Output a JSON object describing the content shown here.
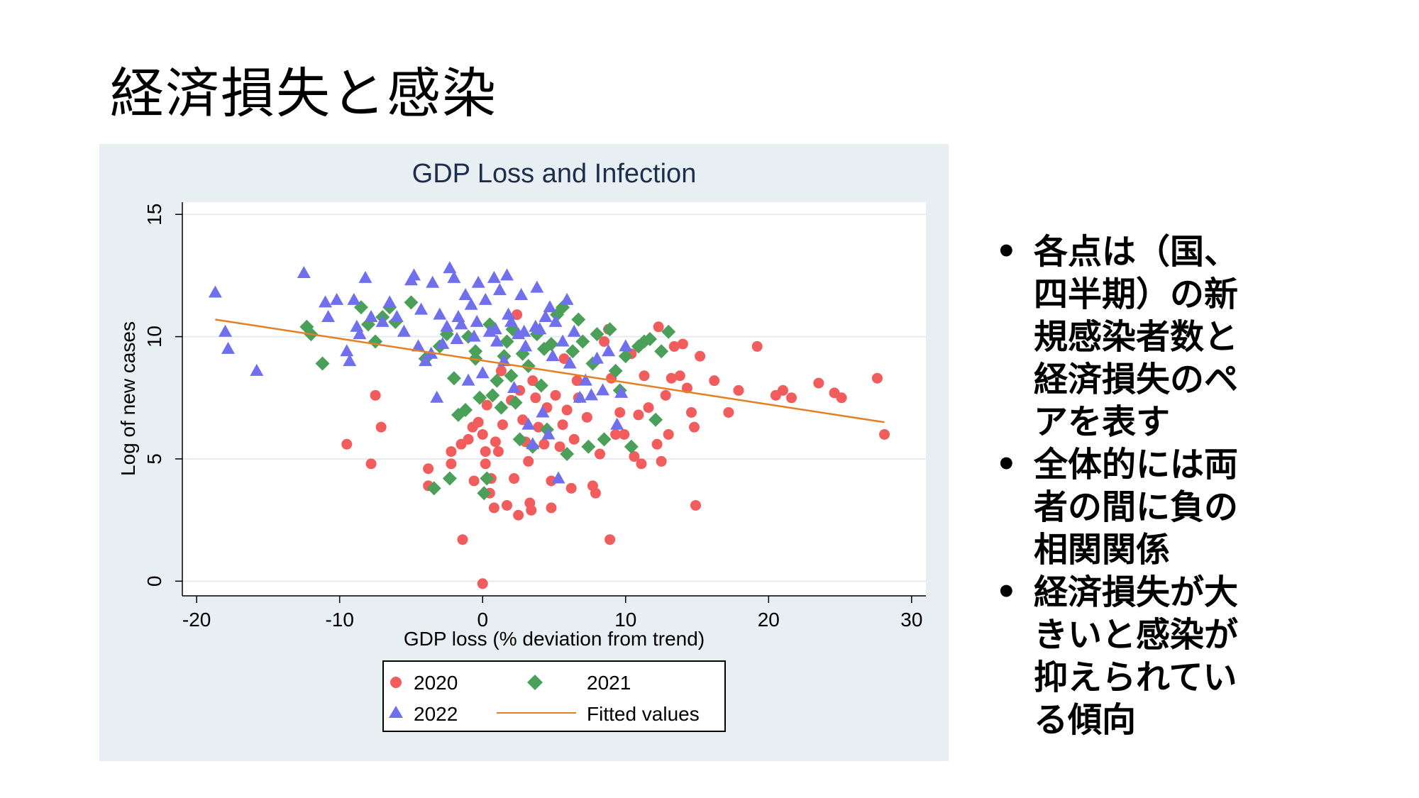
{
  "slide": {
    "title": "経済損失と感染",
    "bullets": [
      "各点は（国、四半期）の新規感染者数と経済損失のペアを表す",
      "全体的には両者の間に負の相関関係",
      "経済損失が大きいと感染が抑えられている傾向"
    ]
  },
  "chart_data": {
    "type": "scatter",
    "title": "GDP Loss and Infection",
    "xlabel": "GDP loss (% deviation from trend)",
    "ylabel": "Log of new cases",
    "xlim": [
      -21,
      31
    ],
    "ylim": [
      -0.6,
      15.5
    ],
    "xticks": [
      "-20",
      "-10",
      "0",
      "10",
      "20",
      "30"
    ],
    "xtick_values": [
      -20,
      -10,
      0,
      10,
      20,
      30
    ],
    "yticks": [
      "0",
      "5",
      "10",
      "15"
    ],
    "ytick_values": [
      0,
      5,
      10,
      15
    ],
    "grid": true,
    "legend": {
      "placement": "bottom",
      "entries": [
        "2020",
        "2021",
        "2022",
        "Fitted values"
      ]
    },
    "series": [
      {
        "name": "2020",
        "marker": "circle",
        "color": "#f25c5c",
        "points": [
          [
            -9.5,
            5.6
          ],
          [
            -7.8,
            4.8
          ],
          [
            -7.5,
            7.6
          ],
          [
            -7.1,
            6.3
          ],
          [
            -3.8,
            3.9
          ],
          [
            -3.8,
            4.6
          ],
          [
            -2.2,
            5.3
          ],
          [
            -2.2,
            4.8
          ],
          [
            -1.5,
            5.6
          ],
          [
            -1.0,
            5.8
          ],
          [
            -0.7,
            6.3
          ],
          [
            -1.4,
            1.7
          ],
          [
            -0.6,
            4.1
          ],
          [
            -0.3,
            6.5
          ],
          [
            0.0,
            6.0
          ],
          [
            0.0,
            -0.1
          ],
          [
            0.2,
            4.8
          ],
          [
            0.2,
            5.3
          ],
          [
            0.3,
            7.2
          ],
          [
            0.5,
            3.6
          ],
          [
            0.6,
            4.2
          ],
          [
            0.8,
            3.0
          ],
          [
            0.9,
            5.7
          ],
          [
            1.1,
            5.3
          ],
          [
            1.4,
            6.4
          ],
          [
            1.7,
            3.1
          ],
          [
            2.0,
            7.4
          ],
          [
            2.2,
            4.2
          ],
          [
            2.5,
            2.7
          ],
          [
            2.6,
            7.8
          ],
          [
            2.8,
            6.6
          ],
          [
            3.0,
            5.7
          ],
          [
            3.2,
            4.9
          ],
          [
            3.3,
            3.2
          ],
          [
            3.4,
            2.9
          ],
          [
            3.5,
            8.2
          ],
          [
            3.7,
            7.5
          ],
          [
            3.9,
            6.3
          ],
          [
            4.3,
            5.6
          ],
          [
            4.5,
            7.1
          ],
          [
            4.8,
            3.0
          ],
          [
            4.8,
            4.1
          ],
          [
            5.1,
            7.6
          ],
          [
            5.4,
            5.5
          ],
          [
            5.6,
            6.4
          ],
          [
            5.9,
            7.0
          ],
          [
            6.2,
            3.8
          ],
          [
            6.4,
            5.8
          ],
          [
            6.6,
            8.2
          ],
          [
            6.7,
            7.5
          ],
          [
            7.3,
            6.7
          ],
          [
            7.7,
            3.9
          ],
          [
            7.9,
            3.6
          ],
          [
            8.2,
            5.2
          ],
          [
            8.5,
            9.8
          ],
          [
            8.9,
            1.7
          ],
          [
            9.0,
            8.3
          ],
          [
            9.3,
            6.0
          ],
          [
            9.6,
            6.9
          ],
          [
            9.9,
            6.0
          ],
          [
            10.4,
            9.3
          ],
          [
            10.6,
            5.1
          ],
          [
            10.9,
            6.8
          ],
          [
            11.1,
            4.8
          ],
          [
            11.3,
            8.4
          ],
          [
            11.6,
            7.1
          ],
          [
            12.2,
            5.6
          ],
          [
            12.5,
            4.9
          ],
          [
            12.8,
            7.6
          ],
          [
            13.0,
            6.0
          ],
          [
            13.2,
            8.3
          ],
          [
            13.4,
            9.6
          ],
          [
            13.8,
            8.4
          ],
          [
            14.0,
            9.7
          ],
          [
            14.3,
            7.9
          ],
          [
            14.6,
            6.9
          ],
          [
            14.8,
            6.3
          ],
          [
            14.9,
            3.1
          ],
          [
            15.2,
            9.2
          ],
          [
            16.2,
            8.2
          ],
          [
            17.2,
            6.9
          ],
          [
            17.9,
            7.8
          ],
          [
            19.2,
            9.6
          ],
          [
            20.5,
            7.6
          ],
          [
            21.0,
            7.8
          ],
          [
            21.6,
            7.5
          ],
          [
            23.5,
            8.1
          ],
          [
            24.6,
            7.7
          ],
          [
            25.1,
            7.5
          ],
          [
            27.6,
            8.3
          ],
          [
            28.1,
            6.0
          ],
          [
            12.3,
            10.4
          ],
          [
            2.4,
            10.9
          ],
          [
            5.7,
            9.1
          ],
          [
            8.8,
            10.3
          ],
          [
            1.3,
            8.6
          ]
        ]
      },
      {
        "name": "2021",
        "marker": "diamond",
        "color": "#4aa059",
        "points": [
          [
            -12.3,
            10.4
          ],
          [
            -12.0,
            10.1
          ],
          [
            -11.2,
            8.9
          ],
          [
            -8.5,
            11.2
          ],
          [
            -8.0,
            10.5
          ],
          [
            -7.5,
            9.8
          ],
          [
            -7.0,
            10.8
          ],
          [
            -6.5,
            11.2
          ],
          [
            -6.1,
            10.6
          ],
          [
            -5.0,
            11.4
          ],
          [
            -4.0,
            9.1
          ],
          [
            -3.0,
            9.6
          ],
          [
            -2.5,
            10.1
          ],
          [
            -2.0,
            8.3
          ],
          [
            -1.7,
            6.8
          ],
          [
            -1.2,
            7.0
          ],
          [
            -0.5,
            9.4
          ],
          [
            -0.2,
            7.5
          ],
          [
            0.1,
            3.6
          ],
          [
            0.3,
            4.2
          ],
          [
            0.7,
            7.6
          ],
          [
            1.0,
            8.2
          ],
          [
            1.3,
            7.1
          ],
          [
            1.7,
            9.8
          ],
          [
            2.0,
            8.4
          ],
          [
            2.3,
            7.3
          ],
          [
            2.6,
            5.8
          ],
          [
            2.8,
            9.3
          ],
          [
            3.2,
            8.8
          ],
          [
            3.5,
            5.5
          ],
          [
            3.8,
            10.1
          ],
          [
            4.1,
            8.0
          ],
          [
            4.5,
            6.2
          ],
          [
            4.8,
            9.7
          ],
          [
            5.2,
            10.9
          ],
          [
            5.6,
            11.2
          ],
          [
            5.9,
            5.2
          ],
          [
            6.3,
            9.4
          ],
          [
            6.7,
            10.7
          ],
          [
            7.0,
            9.8
          ],
          [
            7.4,
            5.5
          ],
          [
            7.7,
            8.9
          ],
          [
            8.0,
            10.1
          ],
          [
            8.5,
            5.8
          ],
          [
            8.9,
            10.3
          ],
          [
            9.3,
            8.6
          ],
          [
            9.6,
            7.8
          ],
          [
            10.0,
            9.2
          ],
          [
            10.4,
            5.5
          ],
          [
            10.9,
            9.6
          ],
          [
            11.3,
            9.8
          ],
          [
            11.7,
            9.9
          ],
          [
            12.1,
            6.6
          ],
          [
            12.5,
            9.4
          ],
          [
            13.0,
            10.2
          ],
          [
            -3.4,
            3.8
          ],
          [
            -2.3,
            4.2
          ],
          [
            -0.5,
            9.1
          ],
          [
            1.5,
            9.2
          ],
          [
            0.5,
            10.5
          ],
          [
            -1.0,
            10.0
          ],
          [
            2.1,
            10.3
          ],
          [
            4.3,
            9.5
          ]
        ]
      },
      {
        "name": "2022",
        "marker": "triangle",
        "color": "#7070ee",
        "points": [
          [
            -18.7,
            11.8
          ],
          [
            -18.0,
            10.2
          ],
          [
            -17.8,
            9.5
          ],
          [
            -15.8,
            8.6
          ],
          [
            -12.5,
            12.6
          ],
          [
            -11.0,
            11.4
          ],
          [
            -10.8,
            10.8
          ],
          [
            -10.2,
            11.5
          ],
          [
            -9.5,
            9.4
          ],
          [
            -9.3,
            9.0
          ],
          [
            -9.0,
            11.5
          ],
          [
            -8.8,
            10.4
          ],
          [
            -8.6,
            10.1
          ],
          [
            -8.2,
            12.4
          ],
          [
            -7.8,
            10.8
          ],
          [
            -7.0,
            10.6
          ],
          [
            -6.5,
            11.4
          ],
          [
            -6.0,
            10.8
          ],
          [
            -5.5,
            10.2
          ],
          [
            -5.0,
            12.3
          ],
          [
            -4.8,
            12.5
          ],
          [
            -4.5,
            9.6
          ],
          [
            -4.3,
            11.1
          ],
          [
            -4.0,
            9.0
          ],
          [
            -3.6,
            9.3
          ],
          [
            -3.5,
            12.2
          ],
          [
            -3.2,
            7.5
          ],
          [
            -3.0,
            10.9
          ],
          [
            -2.8,
            9.7
          ],
          [
            -2.3,
            12.8
          ],
          [
            -2.0,
            12.4
          ],
          [
            -1.8,
            9.9
          ],
          [
            -1.5,
            10.5
          ],
          [
            -1.2,
            11.7
          ],
          [
            -1.0,
            8.2
          ],
          [
            -0.8,
            11.3
          ],
          [
            -0.6,
            10.0
          ],
          [
            -0.3,
            12.2
          ],
          [
            0.0,
            8.5
          ],
          [
            0.2,
            11.5
          ],
          [
            0.5,
            10.2
          ],
          [
            0.8,
            12.4
          ],
          [
            1.0,
            9.8
          ],
          [
            1.2,
            11.9
          ],
          [
            1.5,
            9.0
          ],
          [
            1.7,
            12.5
          ],
          [
            2.0,
            10.6
          ],
          [
            2.2,
            7.9
          ],
          [
            2.5,
            10.1
          ],
          [
            2.7,
            11.7
          ],
          [
            3.0,
            9.6
          ],
          [
            3.2,
            6.4
          ],
          [
            3.5,
            5.6
          ],
          [
            3.8,
            12.0
          ],
          [
            4.0,
            10.3
          ],
          [
            4.2,
            6.9
          ],
          [
            4.4,
            10.8
          ],
          [
            4.6,
            6.0
          ],
          [
            4.9,
            9.2
          ],
          [
            5.1,
            10.6
          ],
          [
            5.3,
            4.2
          ],
          [
            5.6,
            9.8
          ],
          [
            5.9,
            11.5
          ],
          [
            6.1,
            8.9
          ],
          [
            6.4,
            10.2
          ],
          [
            6.8,
            7.5
          ],
          [
            7.2,
            8.2
          ],
          [
            7.6,
            7.6
          ],
          [
            8.0,
            9.1
          ],
          [
            8.4,
            7.8
          ],
          [
            8.8,
            9.4
          ],
          [
            9.4,
            6.4
          ],
          [
            9.7,
            7.7
          ],
          [
            10.0,
            9.6
          ],
          [
            -1.7,
            10.8
          ],
          [
            -0.4,
            10.6
          ],
          [
            1.8,
            10.9
          ],
          [
            3.7,
            10.4
          ],
          [
            0.9,
            10.3
          ],
          [
            2.9,
            10.2
          ],
          [
            -2.5,
            10.4
          ],
          [
            4.7,
            11.2
          ]
        ]
      },
      {
        "name": "Fitted values",
        "marker": "line",
        "color": "#e67e22",
        "points": [
          [
            -18.7,
            10.7
          ],
          [
            28.1,
            6.5
          ]
        ]
      }
    ]
  }
}
